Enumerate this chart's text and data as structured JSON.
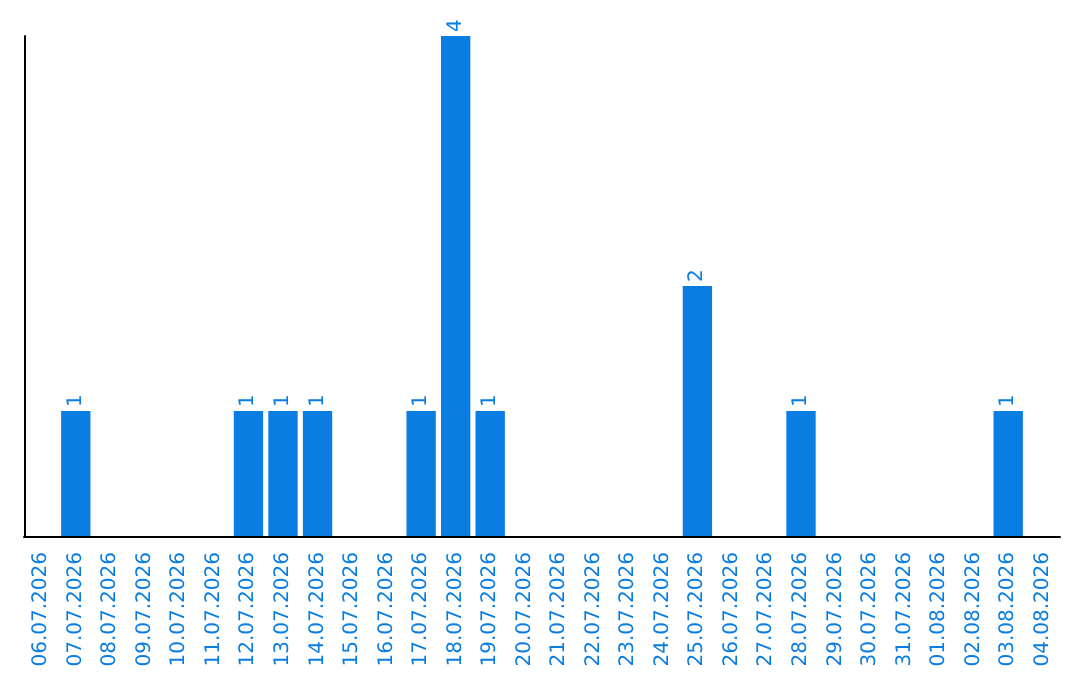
{
  "chart_data": {
    "type": "bar",
    "categories": [
      "06.07.2026",
      "07.07.2026",
      "08.07.2026",
      "09.07.2026",
      "10.07.2026",
      "11.07.2026",
      "12.07.2026",
      "13.07.2026",
      "14.07.2026",
      "15.07.2026",
      "16.07.2026",
      "17.07.2026",
      "18.07.2026",
      "19.07.2026",
      "20.07.2026",
      "21.07.2026",
      "22.07.2026",
      "23.07.2026",
      "24.07.2026",
      "25.07.2026",
      "26.07.2026",
      "27.07.2026",
      "28.07.2026",
      "29.07.2026",
      "30.07.2026",
      "31.07.2026",
      "01.08.2026",
      "02.08.2026",
      "03.08.2026",
      "04.08.2026"
    ],
    "values": [
      0,
      1,
      0,
      0,
      0,
      0,
      1,
      1,
      1,
      0,
      0,
      1,
      4,
      1,
      0,
      0,
      0,
      0,
      0,
      2,
      0,
      0,
      1,
      0,
      0,
      0,
      0,
      0,
      1,
      0
    ],
    "value_labels": [
      null,
      "1",
      null,
      null,
      null,
      null,
      "1",
      "1",
      "1",
      null,
      null,
      "1",
      "4",
      "1",
      null,
      null,
      null,
      null,
      null,
      "2",
      null,
      null,
      "1",
      null,
      null,
      null,
      null,
      null,
      "1",
      null
    ],
    "color": "#0a7de3",
    "tick_labels": "x"
  }
}
